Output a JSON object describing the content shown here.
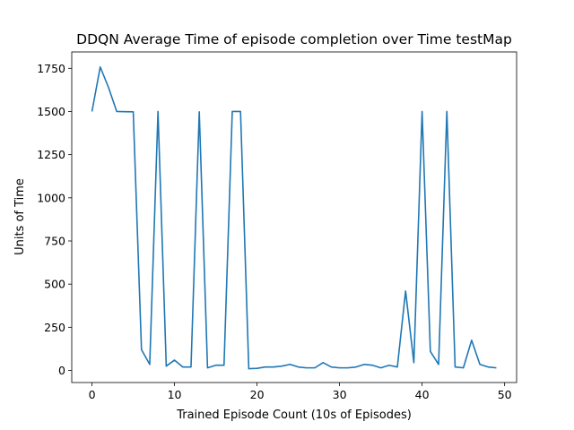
{
  "chart_data": {
    "type": "line",
    "title": "DDQN Average Time of episode completion over Time testMap",
    "xlabel": "Trained Episode Count (10s of Episodes)",
    "ylabel": "Units of Time",
    "xlim": [
      -2.45,
      51.45
    ],
    "ylim": [
      -70,
      1845
    ],
    "xticks": [
      0,
      10,
      20,
      30,
      40,
      50
    ],
    "yticks": [
      0,
      250,
      500,
      750,
      1000,
      1250,
      1500,
      1750
    ],
    "grid": false,
    "series": [
      {
        "color": "#1f77b4",
        "x": [
          0,
          1,
          2,
          3,
          4,
          5,
          6,
          7,
          8,
          9,
          10,
          11,
          12,
          13,
          14,
          15,
          16,
          17,
          18,
          19,
          20,
          21,
          22,
          23,
          24,
          25,
          26,
          27,
          28,
          29,
          30,
          31,
          32,
          33,
          34,
          35,
          36,
          37,
          38,
          39,
          40,
          41,
          42,
          43,
          44,
          45,
          46,
          47,
          48,
          49
        ],
        "y": [
          1500,
          1758,
          1640,
          1500,
          1499,
          1498,
          120,
          35,
          1500,
          25,
          60,
          20,
          20,
          1498,
          15,
          30,
          30,
          1500,
          1500,
          10,
          12,
          20,
          20,
          25,
          35,
          20,
          15,
          15,
          45,
          20,
          15,
          15,
          20,
          35,
          30,
          15,
          30,
          20,
          460,
          45,
          1500,
          110,
          35,
          1500,
          20,
          15,
          175,
          35,
          20,
          15
        ]
      }
    ]
  }
}
